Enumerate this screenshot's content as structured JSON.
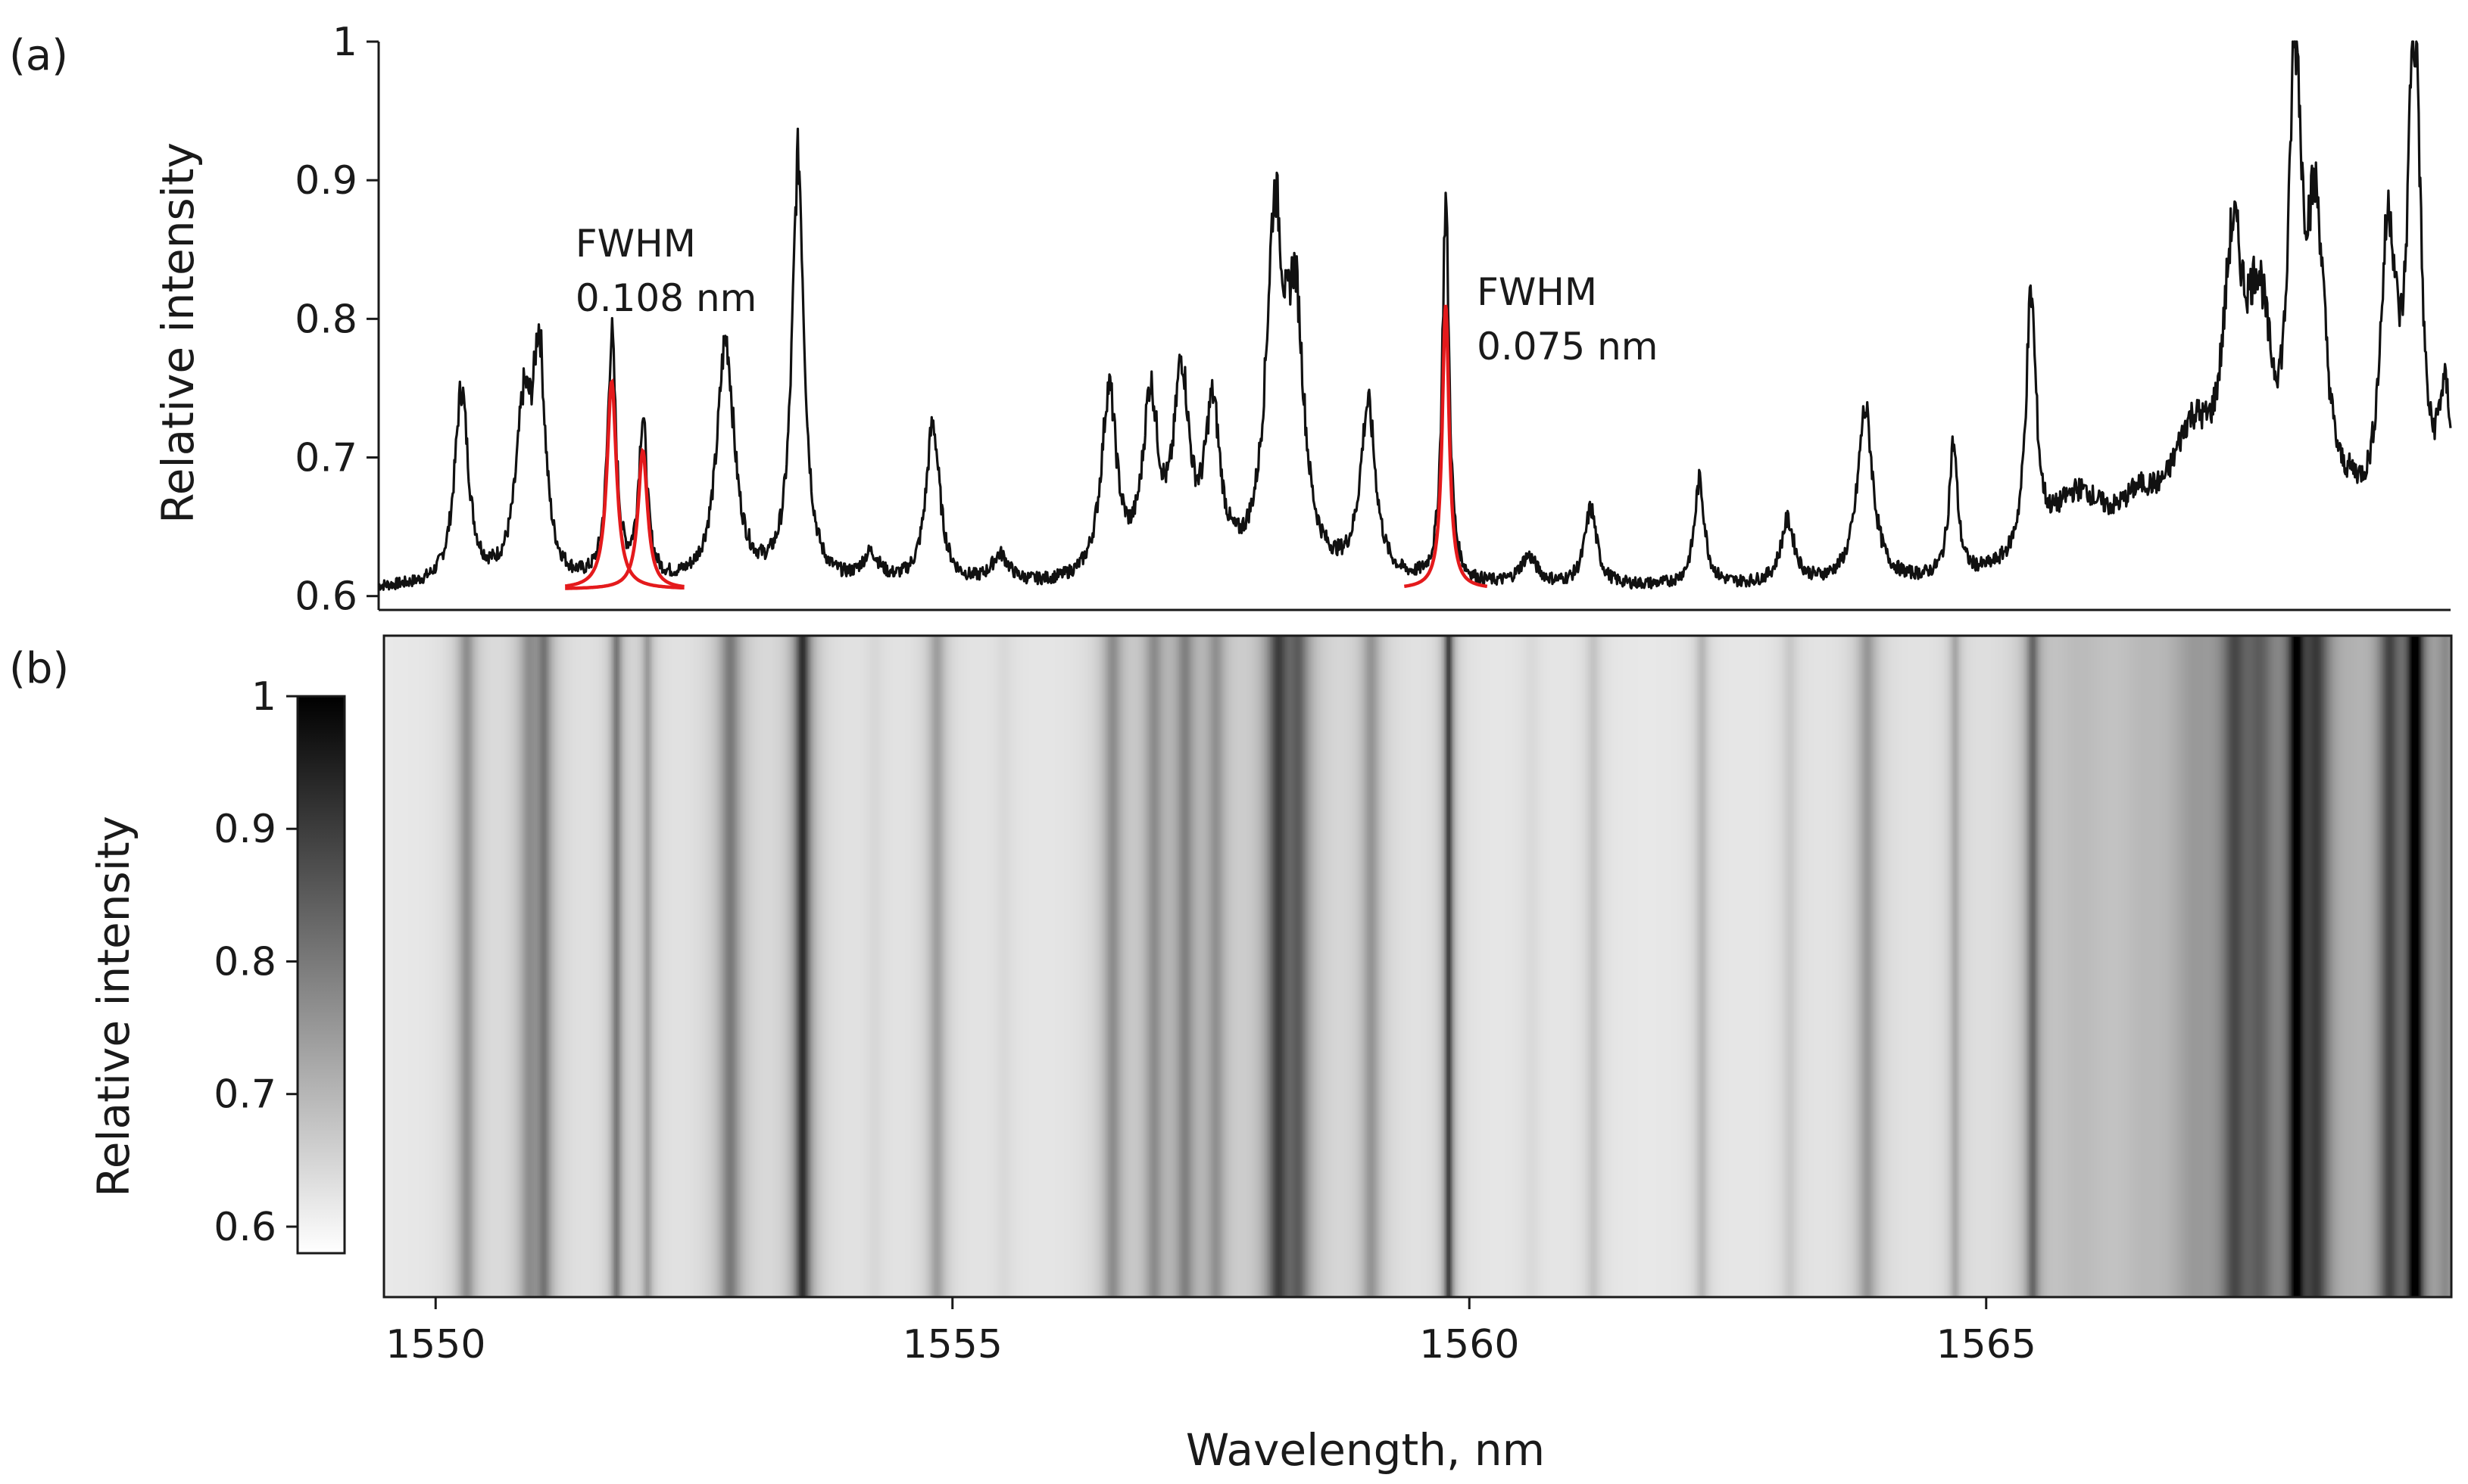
{
  "chart_data": [
    {
      "type": "line",
      "panel_label": "(a)",
      "ylabel": "Relative intensity",
      "ylim": [
        0.59,
        1.0
      ],
      "yticks": [
        0.6,
        0.7,
        0.8,
        0.9,
        1.0
      ],
      "ytick_labels": [
        "0.6",
        "0.7",
        "0.8",
        "0.9",
        "1"
      ],
      "xlim": [
        1549.5,
        1569.5
      ],
      "baseline": 0.605,
      "series": [
        {
          "color": "#111111",
          "peaks": [
            {
              "x": 1550.3,
              "y": 0.745,
              "w": 0.08
            },
            {
              "x": 1550.9,
              "y": 0.72,
              "w": 0.09
            },
            {
              "x": 1551.05,
              "y": 0.76,
              "w": 0.07
            },
            {
              "x": 1551.75,
              "y": 0.78,
              "w": 0.05
            },
            {
              "x": 1552.05,
              "y": 0.72,
              "w": 0.05
            },
            {
              "x": 1552.85,
              "y": 0.78,
              "w": 0.1
            },
            {
              "x": 1553.55,
              "y": 0.91,
              "w": 0.07
            },
            {
              "x": 1554.25,
              "y": 0.625,
              "w": 0.1
            },
            {
              "x": 1554.85,
              "y": 0.72,
              "w": 0.08
            },
            {
              "x": 1555.5,
              "y": 0.625,
              "w": 0.1
            },
            {
              "x": 1556.55,
              "y": 0.74,
              "w": 0.09
            },
            {
              "x": 1556.95,
              "y": 0.73,
              "w": 0.09
            },
            {
              "x": 1557.25,
              "y": 0.745,
              "w": 0.09
            },
            {
              "x": 1557.55,
              "y": 0.72,
              "w": 0.09
            },
            {
              "x": 1558.15,
              "y": 0.85,
              "w": 0.1
            },
            {
              "x": 1558.35,
              "y": 0.78,
              "w": 0.1
            },
            {
              "x": 1559.05,
              "y": 0.73,
              "w": 0.09
            },
            {
              "x": 1559.8,
              "y": 0.88,
              "w": 0.04
            },
            {
              "x": 1560.6,
              "y": 0.625,
              "w": 0.1
            },
            {
              "x": 1561.2,
              "y": 0.66,
              "w": 0.07
            },
            {
              "x": 1562.25,
              "y": 0.68,
              "w": 0.06
            },
            {
              "x": 1563.1,
              "y": 0.65,
              "w": 0.08
            },
            {
              "x": 1563.85,
              "y": 0.73,
              "w": 0.09
            },
            {
              "x": 1564.7,
              "y": 0.7,
              "w": 0.05
            },
            {
              "x": 1565.45,
              "y": 0.79,
              "w": 0.06
            },
            {
              "x": 1565.9,
              "y": 0.66,
              "w": 0.35
            },
            {
              "x": 1566.5,
              "y": 0.64,
              "w": 0.25
            },
            {
              "x": 1567.0,
              "y": 0.69,
              "w": 0.25
            },
            {
              "x": 1567.4,
              "y": 0.79,
              "w": 0.12
            },
            {
              "x": 1567.65,
              "y": 0.76,
              "w": 0.15
            },
            {
              "x": 1568.0,
              "y": 0.92,
              "w": 0.07
            },
            {
              "x": 1568.2,
              "y": 0.83,
              "w": 0.12
            },
            {
              "x": 1568.55,
              "y": 0.63,
              "w": 0.15
            },
            {
              "x": 1568.9,
              "y": 0.83,
              "w": 0.1
            },
            {
              "x": 1569.15,
              "y": 1.0,
              "w": 0.07
            },
            {
              "x": 1569.45,
              "y": 0.72,
              "w": 0.1
            }
          ]
        },
        {
          "color": "#e41a1c",
          "fits": [
            {
              "x": 1551.75,
              "y": 0.755,
              "w": 0.055,
              "from": 1551.3,
              "to": 1552.45
            },
            {
              "x": 1552.05,
              "y": 0.705,
              "w": 0.055,
              "from": 1551.3,
              "to": 1552.45
            },
            {
              "x": 1559.8,
              "y": 0.81,
              "w": 0.04,
              "from": 1559.4,
              "to": 1560.2
            }
          ]
        }
      ],
      "annotations": [
        {
          "lines": [
            "FWHM",
            "0.108 nm"
          ],
          "x": 1551.4,
          "y": 0.845
        },
        {
          "lines": [
            "FWHM",
            "0.075 nm"
          ],
          "x": 1560.1,
          "y": 0.81
        }
      ]
    },
    {
      "type": "heatmap",
      "panel_label": "(b)",
      "xlabel": "Wavelength, nm",
      "xlim": [
        1549.5,
        1569.5
      ],
      "xticks": [
        1550,
        1555,
        1560,
        1565
      ],
      "xtick_labels": [
        "1550",
        "1555",
        "1560",
        "1565"
      ],
      "colorbar": {
        "label": "Relative intensity",
        "range": [
          0.58,
          1.0
        ],
        "ticks": [
          0.6,
          0.7,
          0.8,
          0.9,
          1.0
        ],
        "tick_labels": [
          "0.6",
          "0.7",
          "0.8",
          "0.9",
          "1"
        ],
        "colormap": "white-to-black"
      },
      "source": "same spectrum as panel (a) displayed as grey-scale stripes"
    }
  ]
}
